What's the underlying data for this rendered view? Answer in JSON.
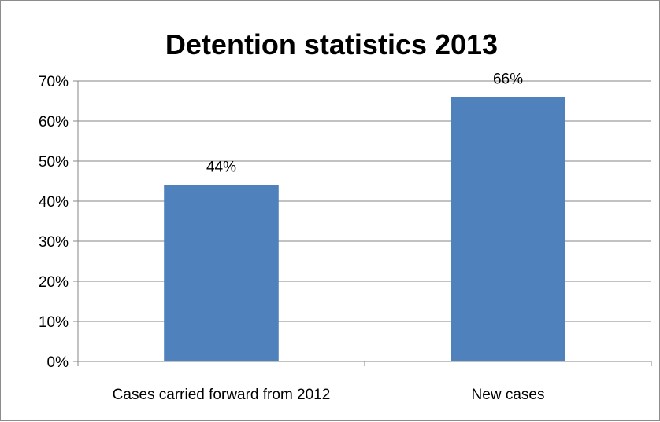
{
  "chart_data": {
    "type": "bar",
    "title": "Detention statistics 2013",
    "xlabel": "",
    "ylabel": "",
    "categories": [
      "Cases carried forward from 2012",
      "New cases"
    ],
    "values": [
      44,
      66
    ],
    "data_labels": [
      "44%",
      "66%"
    ],
    "ylim": [
      0,
      70
    ],
    "y_ticks": [
      0,
      10,
      20,
      30,
      40,
      50,
      60,
      70
    ],
    "y_tick_labels": [
      "0%",
      "10%",
      "20%",
      "30%",
      "40%",
      "50%",
      "60%",
      "70%"
    ],
    "grid": true,
    "legend": "none",
    "bar_color": "#4F81BD",
    "grid_color": "#868686"
  }
}
